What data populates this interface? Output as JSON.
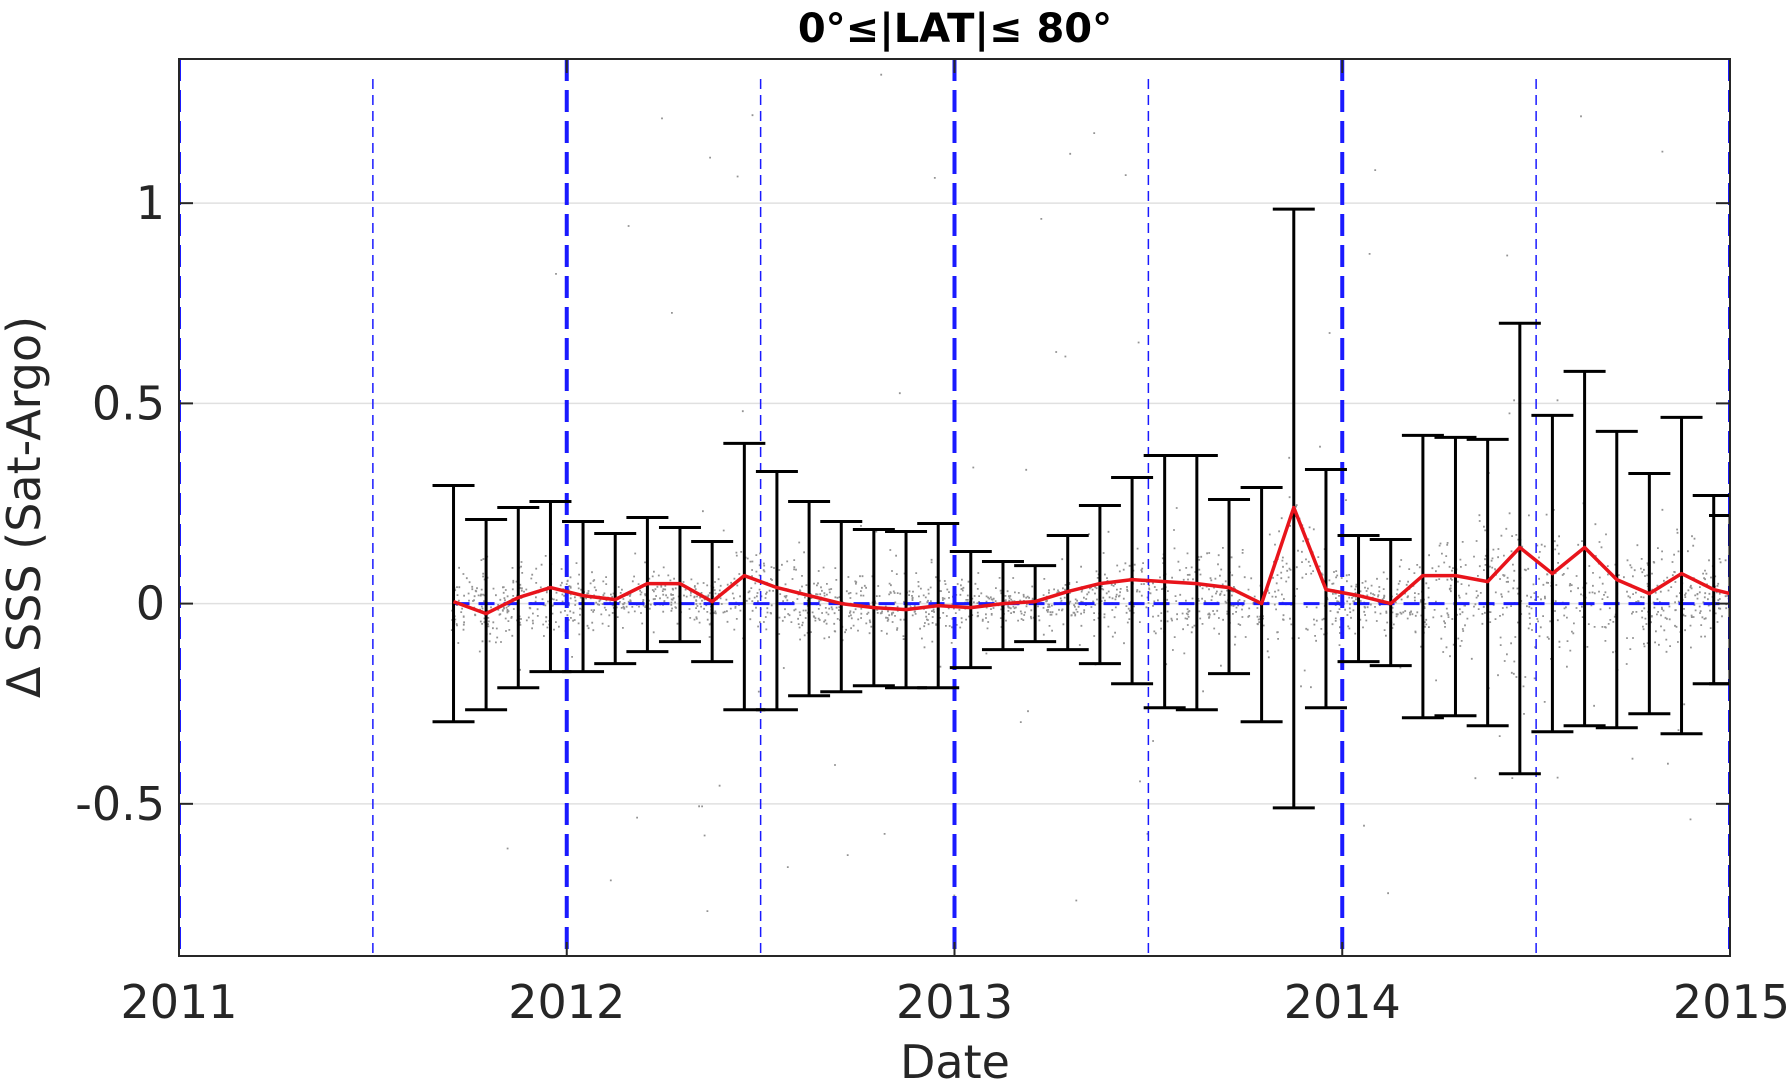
{
  "chart_data": {
    "type": "scatter",
    "title": "0°≤|LAT|≤ 80°",
    "xlabel": "Date",
    "ylabel": "Δ SSS (Sat-Argo)",
    "xlim": [
      2011.0,
      2015.0
    ],
    "ylim": [
      -0.88,
      1.36
    ],
    "xticks": [
      2011,
      2012,
      2013,
      2014,
      2015
    ],
    "xtick_labels": [
      "2011",
      "2012",
      "2013",
      "2014",
      "2015"
    ],
    "yticks": [
      -0.5,
      0,
      0.5,
      1
    ],
    "ytick_labels": [
      "-0.5",
      "0",
      "0.5",
      "1"
    ],
    "grid": "horizontal",
    "legend": "none",
    "colors": {
      "points": "#808080",
      "mean_line": "#e8141b",
      "error_bars": "#000000",
      "year_lines": "#1a1aff",
      "zero_line": "#1a1aff",
      "grid": "#e0e0e0",
      "axis": "#262626"
    },
    "year_lines": [
      2011,
      2012,
      2013,
      2014,
      2015
    ],
    "half_year_lines": [
      2011.5,
      2012.5,
      2013.5,
      2014.5
    ],
    "zero_line": 0,
    "scatter_points": {
      "name": "",
      "x_range": [
        2011.7,
        2015.0
      ],
      "description_values_only": "individual differences, mostly between -0.3 and 0.3"
    },
    "monthly_stats": {
      "x": [
        2011.708,
        2011.792,
        2011.875,
        2011.958,
        2012.042,
        2012.125,
        2012.208,
        2012.292,
        2012.375,
        2012.458,
        2012.542,
        2012.625,
        2012.708,
        2012.792,
        2012.875,
        2012.958,
        2013.042,
        2013.125,
        2013.208,
        2013.292,
        2013.375,
        2013.458,
        2013.542,
        2013.625,
        2013.708,
        2013.792,
        2013.875,
        2013.958,
        2014.042,
        2014.125,
        2014.208,
        2014.292,
        2014.375,
        2014.458,
        2014.542,
        2014.625,
        2014.708,
        2014.792,
        2014.875,
        2014.958,
        2015.0
      ],
      "mean": [
        0.005,
        -0.025,
        0.015,
        0.04,
        0.02,
        0.01,
        0.05,
        0.05,
        0.005,
        0.07,
        0.04,
        0.02,
        0.0,
        -0.01,
        -0.015,
        -0.005,
        -0.01,
        0.0,
        0.005,
        0.03,
        0.05,
        0.06,
        0.055,
        0.05,
        0.04,
        0.0,
        0.24,
        0.035,
        0.02,
        0.0,
        0.07,
        0.07,
        0.055,
        0.14,
        0.075,
        0.14,
        0.06,
        0.025,
        0.075,
        0.035,
        0.025
      ],
      "upper": [
        0.295,
        0.21,
        0.24,
        0.255,
        0.205,
        0.175,
        0.215,
        0.19,
        0.155,
        0.4,
        0.33,
        0.255,
        0.205,
        0.185,
        0.18,
        0.2,
        0.13,
        0.105,
        0.095,
        0.17,
        0.245,
        0.315,
        0.37,
        0.37,
        0.26,
        0.29,
        0.985,
        0.335,
        0.17,
        0.16,
        0.42,
        0.415,
        0.41,
        0.7,
        0.47,
        0.58,
        0.43,
        0.325,
        0.465,
        0.27,
        0.22
      ],
      "lower": [
        -0.295,
        -0.265,
        -0.21,
        -0.17,
        -0.17,
        -0.15,
        -0.12,
        -0.095,
        -0.145,
        -0.265,
        -0.265,
        -0.23,
        -0.22,
        -0.205,
        -0.21,
        -0.21,
        -0.16,
        -0.115,
        -0.095,
        -0.115,
        -0.15,
        -0.2,
        -0.26,
        -0.265,
        -0.175,
        -0.295,
        -0.51,
        -0.26,
        -0.145,
        -0.155,
        -0.285,
        -0.28,
        -0.305,
        -0.425,
        -0.32,
        -0.305,
        -0.31,
        -0.275,
        -0.325,
        -0.2,
        -0.2
      ]
    }
  }
}
